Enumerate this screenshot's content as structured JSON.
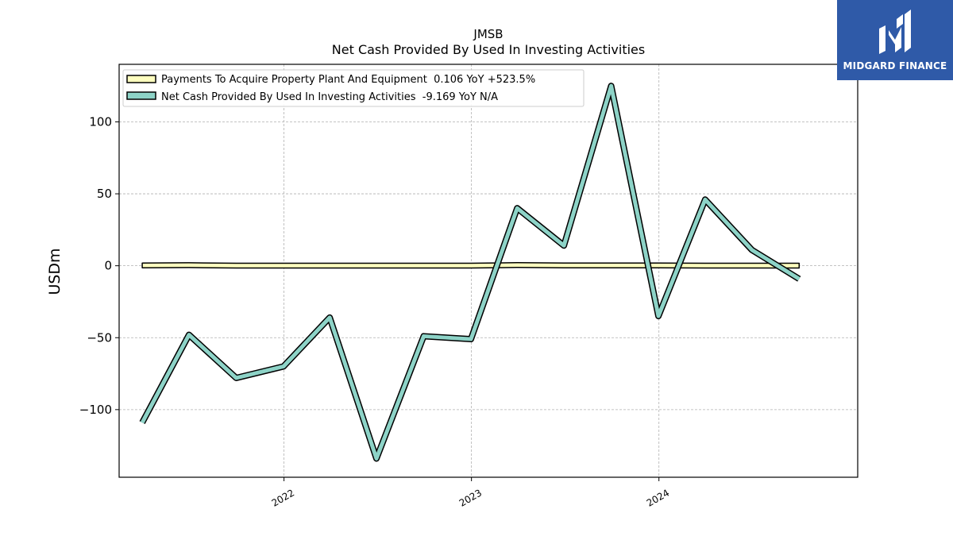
{
  "chart_data": {
    "type": "line",
    "title": "JMSB",
    "subtitle": "Net Cash Provided By Used In Investing Activities",
    "ylabel": "USDm",
    "xlabel": "",
    "ylim": [
      -147,
      140
    ],
    "yticks": [
      100,
      50,
      0,
      -50,
      -100
    ],
    "ytick_labels": [
      "100",
      "50",
      "0",
      "−50",
      "−100"
    ],
    "xlim": [
      "2021-02-14",
      "2025-01-22"
    ],
    "xticks": [
      "2022-01-01",
      "2023-01-01",
      "2024-01-01"
    ],
    "xtick_labels": [
      "2022",
      "2023",
      "2024"
    ],
    "grid": true,
    "legend_position": "top-left",
    "x": [
      "2021-03-31",
      "2021-06-30",
      "2021-09-30",
      "2021-12-31",
      "2022-03-31",
      "2022-06-30",
      "2022-09-30",
      "2022-12-31",
      "2023-03-31",
      "2023-06-30",
      "2023-09-30",
      "2023-12-31",
      "2024-03-31",
      "2024-06-30",
      "2024-09-30"
    ],
    "series": [
      {
        "name": "Payments To Acquire Property Plant And Equipment  0.106 YoY +523.5%",
        "color": "#ffffbf",
        "style": "band",
        "values": [
          0.2,
          0.4,
          0.1,
          0.1,
          0.1,
          0.1,
          0.1,
          0.1,
          0.5,
          0.2,
          0.2,
          0.2,
          0.1,
          0.1,
          0.106
        ]
      },
      {
        "name": "Net Cash Provided By Used In Investing Activities  -9.169 YoY N/A",
        "color": "#8dd3c7",
        "style": "line",
        "values": [
          -109,
          -48,
          -78,
          -70,
          -36,
          -134,
          -49,
          -51,
          40,
          14,
          125,
          -35,
          46,
          11,
          -9.169
        ]
      }
    ]
  },
  "logo": {
    "text": "MIDGARD FINANCE",
    "icon": "midgard-logo-icon",
    "background": "#2f5aa8"
  }
}
